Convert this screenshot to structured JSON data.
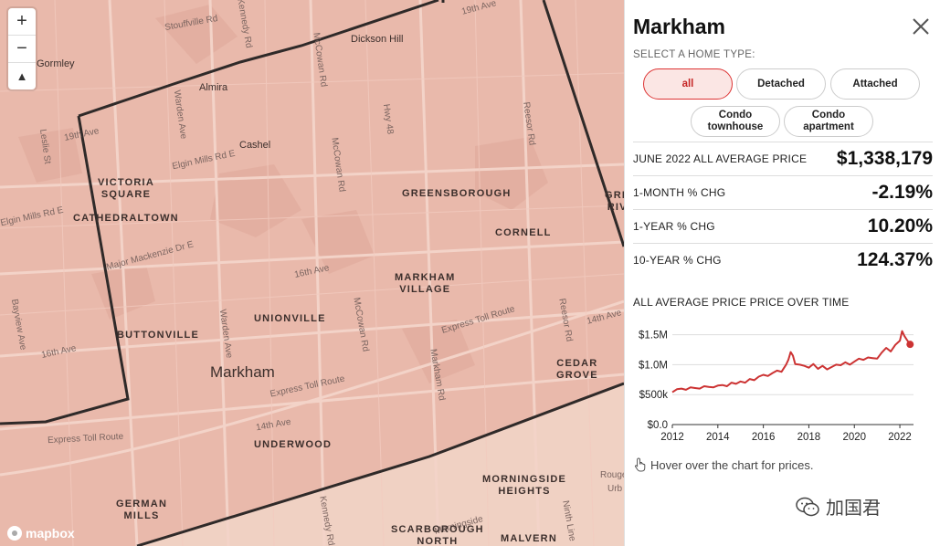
{
  "map": {
    "zoom_in": "+",
    "zoom_out": "−",
    "compass": "▲",
    "attribution": "mapbox",
    "cities": [
      "Markham"
    ],
    "neighbourhoods": [
      {
        "name": "VICTORIA\nSQUARE"
      },
      {
        "name": "CATHEDRALTOWN"
      },
      {
        "name": "GREENSBOROUGH"
      },
      {
        "name": "CORNELL"
      },
      {
        "name": "MARKHAM\nVILLAGE"
      },
      {
        "name": "UNIONVILLE"
      },
      {
        "name": "BUTTONVILLE"
      },
      {
        "name": "CEDAR\nGROVE"
      },
      {
        "name": "UNDERWOOD"
      },
      {
        "name": "MORNINGSIDE\nHEIGHTS"
      },
      {
        "name": "GERMAN\nMILLS"
      },
      {
        "name": "SCARBOROUGH\nNORTH"
      },
      {
        "name": "MALVERN"
      },
      {
        "name": "GRE\nRIV"
      }
    ],
    "towns": [
      "Dickson Hill",
      "Gormley",
      "Almira",
      "Cashel"
    ],
    "roads": [
      "19th Ave",
      "Stouffville Rd",
      "Kennedy Rd",
      "McCowan Rd",
      "Hwy 48",
      "Reesor Rd",
      "Warden Ave",
      "Leslie St",
      "19th Ave",
      "Elgin Mills Rd E",
      "Elgin Mills Rd E",
      "McCowan Rd",
      "Major Mackenzie Dr E",
      "16th Ave",
      "McCowan Rd",
      "Warden Ave",
      "Markham Rd",
      "Express Toll Route",
      "Express Toll Route",
      "14th Ave",
      "Express Toll Route",
      "Bayview Ave",
      "16th Ave",
      "Kennedy Rd",
      "Reesor Rd",
      "14th Ave",
      "Ninth Line",
      "Rouge",
      "Urb",
      "Morningside"
    ]
  },
  "panel": {
    "title": "Markham",
    "close_label": "✕",
    "select_label": "SELECT A HOME TYPE:",
    "home_types": [
      "all",
      "Detached",
      "Attached",
      "Condo\ntownhouse",
      "Condo\napartment"
    ],
    "active_home_type": "all",
    "stats": [
      {
        "label": "JUNE 2022 ALL AVERAGE PRICE",
        "value": "$1,338,179"
      },
      {
        "label": "1-MONTH % CHG",
        "value": "-2.19%"
      },
      {
        "label": "1-YEAR % CHG",
        "value": "10.20%"
      },
      {
        "label": "10-YEAR % CHG",
        "value": "124.37%"
      }
    ],
    "chart_title": "ALL AVERAGE PRICE PRICE OVER TIME",
    "hover_note": "Hover over the chart for prices.",
    "watermark": "加国君"
  },
  "colors": {
    "map_fill": "#e8b3a6",
    "map_outside": "#f0d3c5",
    "boundary": "#2f2a29",
    "accent": "#d32f2f"
  },
  "chart_data": {
    "type": "line",
    "title": "ALL AVERAGE PRICE PRICE OVER TIME",
    "xlabel": "",
    "ylabel": "",
    "ylim": [
      0,
      1600000
    ],
    "xlim": [
      2012,
      2022.6
    ],
    "x_ticks": [
      2012,
      2014,
      2016,
      2018,
      2020,
      2022
    ],
    "x_tick_labels": [
      "2012",
      "2014",
      "2016",
      "2018",
      "2020",
      "2022"
    ],
    "y_ticks": [
      0,
      500000,
      1000000,
      1500000
    ],
    "y_tick_labels": [
      "$0.0",
      "$500k",
      "$1.0M",
      "$1.5M"
    ],
    "series": [
      {
        "color": "#cc3333",
        "x": [
          2012.0,
          2012.2,
          2012.4,
          2012.6,
          2012.8,
          2013.0,
          2013.2,
          2013.4,
          2013.6,
          2013.8,
          2014.0,
          2014.2,
          2014.4,
          2014.6,
          2014.8,
          2015.0,
          2015.2,
          2015.4,
          2015.6,
          2015.8,
          2016.0,
          2016.2,
          2016.4,
          2016.6,
          2016.8,
          2017.0,
          2017.1,
          2017.2,
          2017.3,
          2017.4,
          2017.6,
          2017.8,
          2018.0,
          2018.2,
          2018.4,
          2018.6,
          2018.8,
          2019.0,
          2019.2,
          2019.4,
          2019.6,
          2019.8,
          2020.0,
          2020.2,
          2020.4,
          2020.6,
          2020.8,
          2021.0,
          2021.2,
          2021.4,
          2021.6,
          2021.8,
          2022.0,
          2022.1,
          2022.2,
          2022.3,
          2022.45
        ],
        "y": [
          540000,
          590000,
          600000,
          580000,
          620000,
          610000,
          600000,
          640000,
          630000,
          620000,
          650000,
          660000,
          640000,
          700000,
          680000,
          720000,
          700000,
          760000,
          740000,
          800000,
          830000,
          810000,
          860000,
          900000,
          880000,
          1000000,
          1080000,
          1210000,
          1150000,
          1010000,
          1000000,
          980000,
          950000,
          1010000,
          930000,
          980000,
          920000,
          960000,
          1000000,
          990000,
          1040000,
          1000000,
          1050000,
          1100000,
          1080000,
          1120000,
          1110000,
          1100000,
          1200000,
          1280000,
          1220000,
          1330000,
          1400000,
          1560000,
          1480000,
          1420000,
          1338179
        ]
      }
    ]
  }
}
